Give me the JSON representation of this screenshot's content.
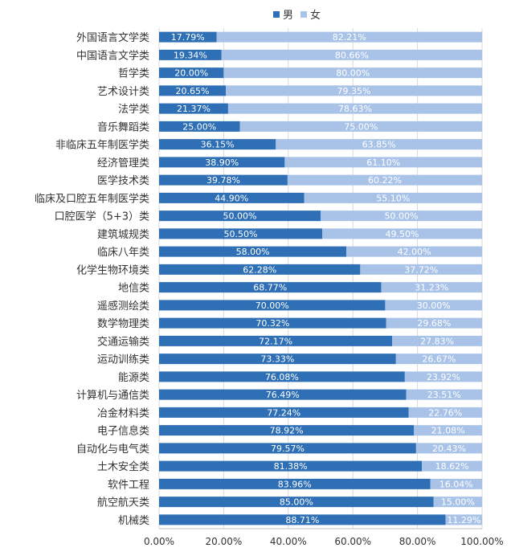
{
  "chart_data": {
    "type": "bar",
    "orientation": "horizontal",
    "stacked": true,
    "normalized": true,
    "title": "",
    "xlabel": "",
    "ylabel": "",
    "xlim": [
      0,
      100
    ],
    "grid": true,
    "legend": "top",
    "categories": [
      "外国语言文学类",
      "中国语言文学类",
      "哲学类",
      "艺术设计类",
      "法学类",
      "音乐舞蹈类",
      "非临床五年制医学类",
      "经济管理类",
      "医学技术类",
      "临床及口腔五年制医学类",
      "口腔医学（5+3）类",
      "建筑城规类",
      "临床八年类",
      "化学生物环境类",
      "地信类",
      "遥感测绘类",
      "数学物理类",
      "交通运输类",
      "运动训练类",
      "能源类",
      "计算机与通信类",
      "冶金材料类",
      "电子信息类",
      "自动化与电气类",
      "土木安全类",
      "软件工程",
      "航空航天类",
      "机械类"
    ],
    "series": [
      {
        "name": "男",
        "color": "#2e6fb5",
        "values": [
          17.79,
          19.34,
          20.0,
          20.65,
          21.37,
          25.0,
          36.15,
          38.9,
          39.78,
          44.9,
          50.0,
          50.5,
          58.0,
          62.28,
          68.77,
          70.0,
          70.32,
          72.17,
          73.33,
          76.08,
          76.49,
          77.24,
          78.92,
          79.57,
          81.38,
          83.96,
          85.0,
          88.71
        ],
        "labels": [
          "17.79%",
          "19.34%",
          "20.00%",
          "20.65%",
          "21.37%",
          "25.00%",
          "36.15%",
          "38.90%",
          "39.78%",
          "44.90%",
          "50.00%",
          "50.50%",
          "58.00%",
          "62.28%",
          "68.77%",
          "70.00%",
          "70.32%",
          "72.17%",
          "73.33%",
          "76.08%",
          "76.49%",
          "77.24%",
          "78.92%",
          "79.57%",
          "81.38%",
          "83.96%",
          "85.00%",
          "88.71%"
        ]
      },
      {
        "name": "女",
        "color": "#a9c3e8",
        "values": [
          82.21,
          80.66,
          80.0,
          79.35,
          78.63,
          75.0,
          63.85,
          61.1,
          60.22,
          55.1,
          50.0,
          49.5,
          42.0,
          37.72,
          31.23,
          30.0,
          29.68,
          27.83,
          26.67,
          23.92,
          23.51,
          22.76,
          21.08,
          20.43,
          18.62,
          16.04,
          15.0,
          11.29
        ],
        "labels": [
          "82.21%",
          "80.66%",
          "80.00%",
          "79.35%",
          "78.63%",
          "75.00%",
          "63.85%",
          "61.10%",
          "60.22%",
          "55.10%",
          "50.00%",
          "49.50%",
          "42.00%",
          "37.72%",
          "31.23%",
          "30.00%",
          "29.68%",
          "27.83%",
          "26.67%",
          "23.92%",
          "23.51%",
          "22.76%",
          "21.08%",
          "20.43%",
          "18.62%",
          "16.04%",
          "15.00%",
          "11.29%"
        ]
      }
    ],
    "x_ticks": [
      0,
      20,
      40,
      60,
      80,
      100
    ],
    "x_tick_labels": [
      "0.00%",
      "20.00%",
      "40.00%",
      "60.00%",
      "80.00%",
      "100.00%"
    ]
  }
}
